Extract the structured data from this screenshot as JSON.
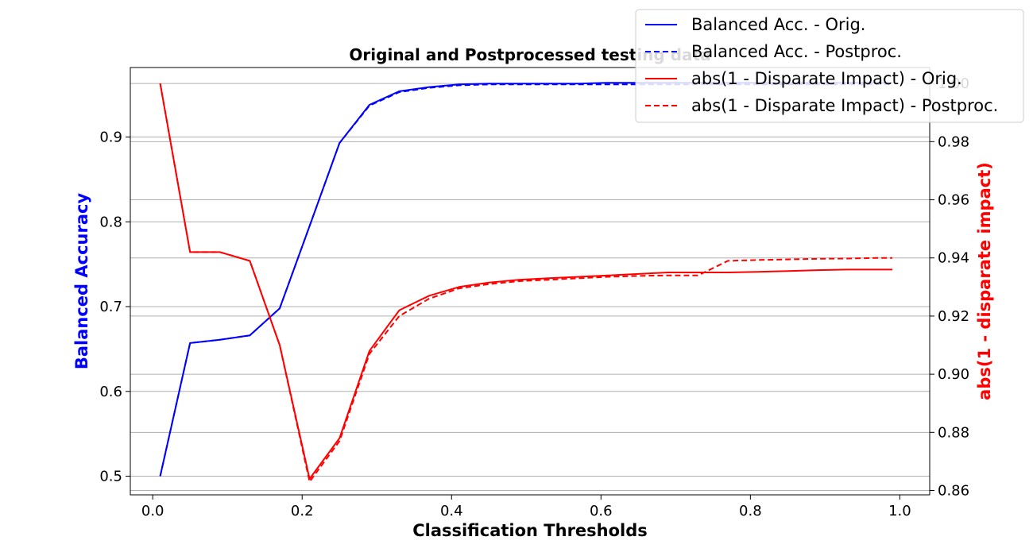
{
  "chart_data": {
    "type": "line",
    "title": "Original and Postprocessed testing data",
    "xlabel": "Classification Thresholds",
    "ylabel_left": "Balanced Accuracy",
    "ylabel_right": "abs(1 - disparate impact)",
    "xlim": [
      -0.03,
      1.04
    ],
    "ylim_left": [
      0.478,
      0.982
    ],
    "ylim_right": [
      0.8585,
      1.0055
    ],
    "x_ticks": [
      0.0,
      0.2,
      0.4,
      0.6,
      0.8,
      1.0
    ],
    "x_tick_labels": [
      "0.0",
      "0.2",
      "0.4",
      "0.6",
      "0.8",
      "1.0"
    ],
    "y_left_ticks": [
      0.5,
      0.6,
      0.7,
      0.8,
      0.9
    ],
    "y_left_tick_labels": [
      "0.5",
      "0.6",
      "0.7",
      "0.8",
      "0.9"
    ],
    "y_right_ticks": [
      0.86,
      0.88,
      0.9,
      0.92,
      0.94,
      0.96,
      0.98,
      1.0
    ],
    "y_right_tick_labels": [
      "0.86",
      "0.88",
      "0.90",
      "0.92",
      "0.94",
      "0.96",
      "0.98",
      "1.00"
    ],
    "grid": "horizontal",
    "legend_position": "top-right",
    "x": [
      0.01,
      0.05,
      0.09,
      0.13,
      0.17,
      0.21,
      0.25,
      0.29,
      0.33,
      0.37,
      0.41,
      0.45,
      0.49,
      0.53,
      0.57,
      0.61,
      0.65,
      0.69,
      0.73,
      0.77,
      0.81,
      0.85,
      0.89,
      0.93,
      0.97,
      0.99
    ],
    "series": [
      {
        "name": "Balanced Acc. - Orig.",
        "axis": "left",
        "color": "#0000ff",
        "dash": "solid",
        "values": [
          0.5,
          0.657,
          0.661,
          0.666,
          0.698,
          0.795,
          0.893,
          0.938,
          0.954,
          0.959,
          0.962,
          0.963,
          0.963,
          0.963,
          0.963,
          0.964,
          0.964,
          0.964,
          0.964,
          0.964,
          0.964,
          0.964,
          0.964,
          0.964,
          0.964,
          0.964
        ]
      },
      {
        "name": "Balanced Acc. - Postproc.",
        "axis": "left",
        "color": "#0000ff",
        "dash": "dashed",
        "values": [
          0.5,
          0.657,
          0.661,
          0.666,
          0.698,
          0.795,
          0.893,
          0.937,
          0.953,
          0.958,
          0.961,
          0.962,
          0.962,
          0.962,
          0.962,
          0.962,
          0.962,
          0.962,
          0.962,
          0.962,
          0.962,
          0.962,
          0.962,
          0.962,
          0.962,
          0.962
        ]
      },
      {
        "name": "abs(1 - Disparate Impact) - Orig.",
        "axis": "right",
        "color": "#ff0000",
        "dash": "solid",
        "values": [
          1.0,
          0.942,
          0.942,
          0.939,
          0.91,
          0.864,
          0.878,
          0.908,
          0.922,
          0.927,
          0.93,
          0.9315,
          0.9325,
          0.933,
          0.9335,
          0.934,
          0.9345,
          0.935,
          0.935,
          0.935,
          0.9352,
          0.9355,
          0.9358,
          0.936,
          0.936,
          0.936
        ]
      },
      {
        "name": "abs(1 - Disparate Impact) - Postproc.",
        "axis": "right",
        "color": "#ff0000",
        "dash": "dashed",
        "values": [
          1.0,
          0.942,
          0.942,
          0.939,
          0.91,
          0.863,
          0.877,
          0.907,
          0.92,
          0.926,
          0.9295,
          0.931,
          0.932,
          0.9325,
          0.933,
          0.9335,
          0.9338,
          0.934,
          0.934,
          0.939,
          0.9393,
          0.9395,
          0.9397,
          0.9398,
          0.94,
          0.94
        ]
      }
    ]
  }
}
